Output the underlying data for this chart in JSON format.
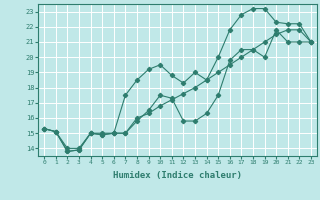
{
  "xlabel": "Humidex (Indice chaleur)",
  "background_color": "#c0e8e8",
  "grid_color": "#ffffff",
  "line_color": "#2e7d6e",
  "xlim": [
    -0.5,
    23.5
  ],
  "ylim": [
    13.5,
    23.5
  ],
  "xticks": [
    0,
    1,
    2,
    3,
    4,
    5,
    6,
    7,
    8,
    9,
    10,
    11,
    12,
    13,
    14,
    15,
    16,
    17,
    18,
    19,
    20,
    21,
    22,
    23
  ],
  "yticks": [
    14,
    15,
    16,
    17,
    18,
    19,
    20,
    21,
    22,
    23
  ],
  "line1_x": [
    0,
    1,
    2,
    3,
    4,
    5,
    6,
    7,
    8,
    9,
    10,
    11,
    12,
    13,
    14,
    15,
    16,
    17,
    18,
    19,
    20,
    21,
    22,
    23
  ],
  "line1_y": [
    15.3,
    15.1,
    14.0,
    14.0,
    15.0,
    15.0,
    15.0,
    15.0,
    16.0,
    16.3,
    16.8,
    17.2,
    17.6,
    18.0,
    18.5,
    19.0,
    19.5,
    20.0,
    20.5,
    21.0,
    21.5,
    21.8,
    21.8,
    21.0
  ],
  "line2_x": [
    0,
    1,
    2,
    3,
    4,
    5,
    6,
    7,
    8,
    9,
    10,
    11,
    12,
    13,
    14,
    15,
    16,
    17,
    18,
    19,
    20,
    21,
    22,
    23
  ],
  "line2_y": [
    15.3,
    15.1,
    13.8,
    13.9,
    15.0,
    14.9,
    15.0,
    15.0,
    15.8,
    16.5,
    17.5,
    17.3,
    15.8,
    15.8,
    16.3,
    17.5,
    19.8,
    20.5,
    20.5,
    20.0,
    21.8,
    21.0,
    21.0,
    21.0
  ],
  "line3_x": [
    0,
    1,
    2,
    3,
    4,
    5,
    6,
    7,
    8,
    9,
    10,
    11,
    12,
    13,
    14,
    15,
    16,
    17,
    18,
    19,
    20,
    21,
    22,
    23
  ],
  "line3_y": [
    15.3,
    15.1,
    13.8,
    13.9,
    15.0,
    14.9,
    15.0,
    17.5,
    18.5,
    19.2,
    19.5,
    18.8,
    18.3,
    19.0,
    18.5,
    20.0,
    21.8,
    22.8,
    23.2,
    23.2,
    22.3,
    22.2,
    22.2,
    21.0
  ],
  "figwidth": 3.2,
  "figheight": 2.0,
  "dpi": 100
}
